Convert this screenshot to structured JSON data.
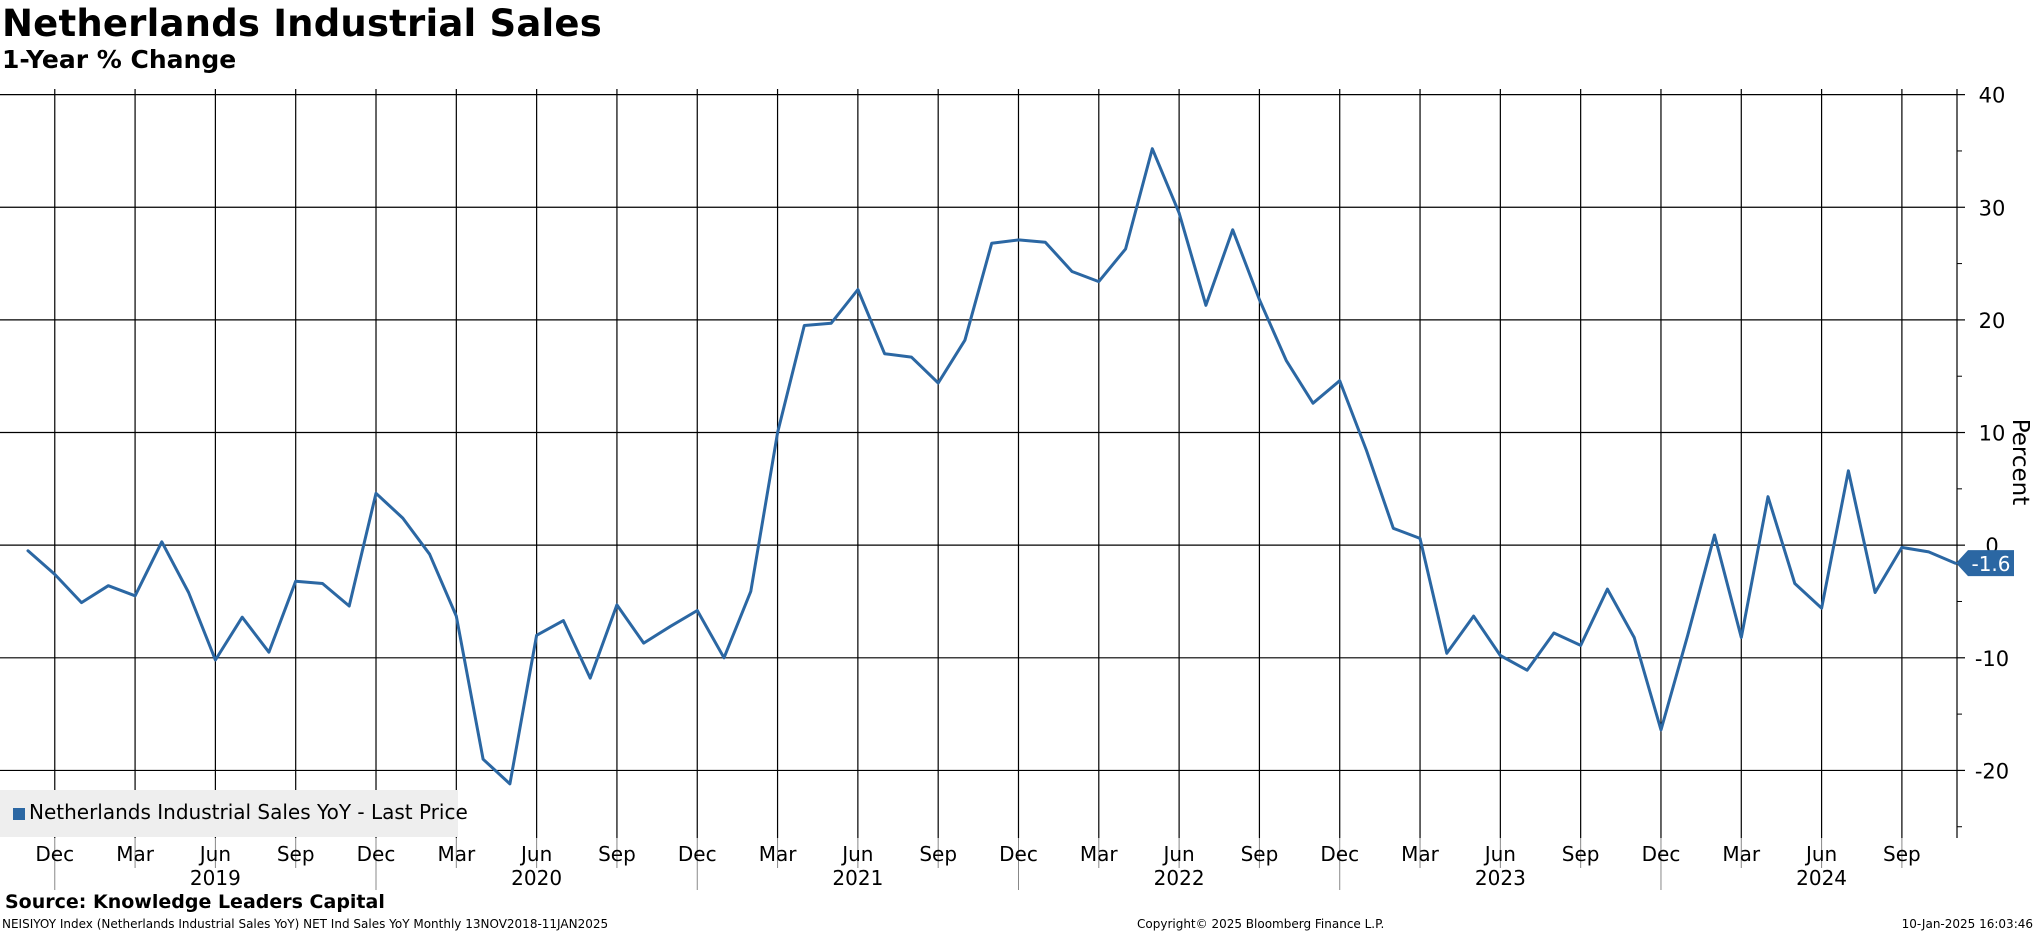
{
  "header": {
    "title": "Netherlands Industrial Sales",
    "subtitle": "1-Year % Change"
  },
  "footer": {
    "source": "Source: Knowledge Leaders Capital",
    "index_info": "NEISIYOY Index (Netherlands Industrial Sales YoY) NET Ind Sales YoY  Monthly 13NOV2018-11JAN2025",
    "copyright": "Copyright© 2025 Bloomberg Finance L.P.",
    "timestamp": "10-Jan-2025 16:03:46"
  },
  "colors": {
    "series": "#2b67a3",
    "grid": "#000000",
    "legend_bg": "#eeeeee"
  },
  "chart_data": {
    "type": "line",
    "title": "Netherlands Industrial Sales",
    "subtitle": "1-Year % Change",
    "ylabel": "Percent",
    "ylim": [
      -26,
      40.5
    ],
    "yticks": [
      40,
      30,
      20,
      10,
      0,
      -10,
      -20
    ],
    "ytick_labels": [
      "40",
      "30",
      "20",
      "10",
      "0",
      "-10",
      "-20"
    ],
    "y_axis_side": "right",
    "grid": true,
    "legend_position": "bottom-left",
    "last_value_label": "-1.6",
    "month_ticks": [
      "Dec",
      "Mar",
      "Jun",
      "Sep",
      "Dec",
      "Mar",
      "Jun",
      "Sep",
      "Dec",
      "Mar",
      "Jun",
      "Sep",
      "Dec",
      "Mar",
      "Jun",
      "Sep",
      "Dec",
      "Mar",
      "Jun",
      "Sep",
      "Dec",
      "Mar",
      "Jun",
      "Sep"
    ],
    "tick_months": [
      "2018-12",
      "2019-03",
      "2019-06",
      "2019-09",
      "2019-12",
      "2020-03",
      "2020-06",
      "2020-09",
      "2020-12",
      "2021-03",
      "2021-06",
      "2021-09",
      "2021-12",
      "2022-03",
      "2022-06",
      "2022-09",
      "2022-12",
      "2023-03",
      "2023-06",
      "2023-09",
      "2023-12",
      "2024-03",
      "2024-06",
      "2024-09"
    ],
    "year_labels": [
      "2019",
      "2020",
      "2021",
      "2022",
      "2023",
      "2024"
    ],
    "year_label_months": [
      "2019-06",
      "2020-06",
      "2021-06",
      "2022-06",
      "2023-06",
      "2024-06"
    ],
    "series": [
      {
        "name": "Netherlands Industrial Sales YoY - Last Price",
        "x": [
          "2018-11",
          "2018-12",
          "2019-01",
          "2019-02",
          "2019-03",
          "2019-04",
          "2019-05",
          "2019-06",
          "2019-07",
          "2019-08",
          "2019-09",
          "2019-10",
          "2019-11",
          "2019-12",
          "2020-01",
          "2020-02",
          "2020-03",
          "2020-04",
          "2020-05",
          "2020-06",
          "2020-07",
          "2020-08",
          "2020-09",
          "2020-10",
          "2020-11",
          "2020-12",
          "2021-01",
          "2021-02",
          "2021-03",
          "2021-04",
          "2021-05",
          "2021-06",
          "2021-07",
          "2021-08",
          "2021-09",
          "2021-10",
          "2021-11",
          "2021-12",
          "2022-01",
          "2022-02",
          "2022-03",
          "2022-04",
          "2022-05",
          "2022-06",
          "2022-07",
          "2022-08",
          "2022-09",
          "2022-10",
          "2022-11",
          "2022-12",
          "2023-01",
          "2023-02",
          "2023-03",
          "2023-04",
          "2023-05",
          "2023-06",
          "2023-07",
          "2023-08",
          "2023-09",
          "2023-10",
          "2023-11",
          "2023-12",
          "2024-01",
          "2024-02",
          "2024-03",
          "2024-04",
          "2024-05",
          "2024-06",
          "2024-07",
          "2024-08",
          "2024-09",
          "2024-10",
          "2024-11"
        ],
        "values": [
          -0.5,
          -2.6,
          -5.1,
          -3.6,
          -4.5,
          0.3,
          -4.2,
          -10.2,
          -6.4,
          -9.5,
          -3.2,
          -3.4,
          -5.4,
          4.6,
          2.4,
          -0.8,
          -6.3,
          -19.0,
          -21.2,
          -8.0,
          -6.7,
          -11.8,
          -5.3,
          -8.7,
          -7.2,
          -5.8,
          -10.0,
          -4.1,
          10.0,
          19.5,
          19.7,
          22.7,
          17.0,
          16.7,
          14.4,
          18.2,
          26.8,
          27.1,
          26.9,
          24.3,
          23.4,
          26.3,
          35.2,
          29.5,
          21.3,
          28.0,
          21.8,
          16.4,
          12.6,
          14.6,
          8.4,
          1.5,
          0.6,
          -9.6,
          -6.3,
          -9.8,
          -11.1,
          -7.8,
          -8.9,
          -3.9,
          -8.2,
          -16.4,
          -8.0,
          0.9,
          -8.2,
          4.3,
          -3.4,
          -5.6,
          6.6,
          -4.2,
          -0.2,
          -0.6,
          -1.6
        ]
      }
    ]
  }
}
